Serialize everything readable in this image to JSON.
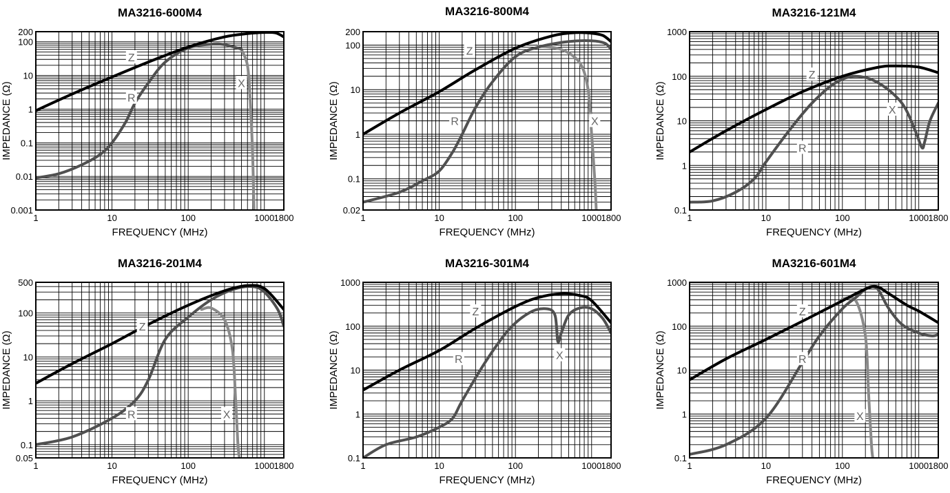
{
  "colors": {
    "Z": "#000000",
    "R": "#505050",
    "X": "#8a8a8a",
    "grid": "#000000"
  },
  "chart_data": [
    {
      "type": "line",
      "title": "MA3216-600M4",
      "xlabel": "FREQUENCY (MHz)",
      "ylabel": "IMPEDANCE (Ω)",
      "xscale": "log",
      "yscale": "log",
      "xlim": [
        1,
        1800
      ],
      "ylim": [
        0.001,
        200
      ],
      "xticks": [
        1,
        10,
        100,
        1000,
        1800
      ],
      "xticklabels": [
        "1",
        "10",
        "100",
        "1000",
        "1800"
      ],
      "yticks": [
        0.001,
        0.01,
        0.1,
        1,
        10,
        100,
        200
      ],
      "yticklabels": [
        "0.001",
        "0.01",
        "0.1",
        "1",
        "10",
        "100",
        "200"
      ],
      "grid": true,
      "series": [
        {
          "name": "Z",
          "x": [
            1,
            3,
            10,
            30,
            100,
            300,
            600,
            1000,
            1400,
            1800
          ],
          "y": [
            0.9,
            2.8,
            9,
            25,
            70,
            140,
            175,
            190,
            185,
            140
          ]
        },
        {
          "name": "R",
          "x": [
            1,
            2,
            4,
            7,
            10,
            15,
            20,
            30,
            50,
            100,
            200,
            300,
            500
          ],
          "y": [
            0.009,
            0.012,
            0.022,
            0.045,
            0.1,
            0.4,
            1.5,
            6,
            25,
            65,
            85,
            82,
            60
          ]
        },
        {
          "name": "X",
          "x": [
            500,
            600,
            650,
            700,
            730
          ],
          "y": [
            60,
            20,
            2,
            0.05,
            0.001
          ]
        }
      ],
      "annotations": [
        {
          "text": "Z",
          "x": 18,
          "y": 35
        },
        {
          "text": "R",
          "x": 18,
          "y": 2.2
        },
        {
          "text": "X",
          "x": 500,
          "y": 6
        }
      ]
    },
    {
      "type": "line",
      "title": "MA3216-800M4",
      "xlabel": "FREQUENCY (MHz)",
      "ylabel": "IMPEDANCE (Ω)",
      "xscale": "log",
      "yscale": "log",
      "xlim": [
        1,
        1800
      ],
      "ylim": [
        0.02,
        200
      ],
      "xticks": [
        1,
        10,
        100,
        1000,
        1800
      ],
      "xticklabels": [
        "1",
        "10",
        "100",
        "1000",
        "1800"
      ],
      "yticks": [
        0.02,
        0.1,
        1,
        10,
        100,
        200
      ],
      "yticklabels": [
        "0.02",
        "0.1",
        "1",
        "10",
        "100",
        "200"
      ],
      "grid": true,
      "series": [
        {
          "name": "Z",
          "x": [
            1,
            3,
            10,
            30,
            100,
            300,
            600,
            1000,
            1400,
            1800
          ],
          "y": [
            1,
            3,
            9,
            28,
            85,
            160,
            190,
            185,
            165,
            120
          ]
        },
        {
          "name": "R",
          "x": [
            1,
            3,
            6,
            10,
            15,
            20,
            30,
            50,
            100,
            200,
            500,
            1000,
            1500,
            1800
          ],
          "y": [
            0.03,
            0.05,
            0.09,
            0.15,
            0.4,
            1,
            4,
            15,
            55,
            90,
            120,
            125,
            110,
            80
          ]
        },
        {
          "name": "X",
          "x": [
            200,
            400,
            700,
            900,
            1000,
            1100,
            1150
          ],
          "y": [
            95,
            80,
            40,
            10,
            1,
            0.1,
            0.02
          ]
        }
      ],
      "annotations": [
        {
          "text": "Z",
          "x": 25,
          "y": 75
        },
        {
          "text": "R",
          "x": 16,
          "y": 2
        },
        {
          "text": "X",
          "x": 1100,
          "y": 2
        }
      ]
    },
    {
      "type": "line",
      "title": "MA3216-121M4",
      "xlabel": "FREQUENCY (MHz)",
      "ylabel": "IMPEDANCE (Ω)",
      "xscale": "log",
      "yscale": "log",
      "xlim": [
        1,
        1800
      ],
      "ylim": [
        0.1,
        1000
      ],
      "xticks": [
        1,
        10,
        100,
        1000,
        1800
      ],
      "xticklabels": [
        "1",
        "10",
        "100",
        "1000",
        "1800"
      ],
      "yticks": [
        0.1,
        1,
        10,
        100,
        1000
      ],
      "yticklabels": [
        "0.1",
        "1",
        "10",
        "100",
        "1000"
      ],
      "grid": true,
      "series": [
        {
          "name": "Z",
          "x": [
            1,
            3,
            10,
            30,
            100,
            300,
            500,
            1000,
            1800
          ],
          "y": [
            2,
            6,
            18,
            45,
            100,
            160,
            170,
            160,
            120
          ]
        },
        {
          "name": "R",
          "x": [
            1,
            2,
            4,
            7,
            10,
            20,
            40,
            80,
            150,
            300,
            600,
            900,
            1100,
            1200,
            1400,
            1800
          ],
          "y": [
            0.15,
            0.16,
            0.25,
            0.5,
            1.2,
            6,
            25,
            70,
            100,
            70,
            25,
            6,
            2.5,
            3.5,
            10,
            25
          ]
        }
      ],
      "annotations": [
        {
          "text": "Z",
          "x": 40,
          "y": 110
        },
        {
          "text": "R",
          "x": 30,
          "y": 2.5
        },
        {
          "text": "X",
          "x": 450,
          "y": 18
        }
      ]
    },
    {
      "type": "line",
      "title": "MA3216-201M4",
      "xlabel": "FREQUENCY (MHz)",
      "ylabel": "IMPEDANCE (Ω)",
      "xscale": "log",
      "yscale": "log",
      "xlim": [
        1,
        1800
      ],
      "ylim": [
        0.05,
        500
      ],
      "xticks": [
        1,
        10,
        100,
        1000,
        1800
      ],
      "xticklabels": [
        "1",
        "10",
        "100",
        "1000",
        "1800"
      ],
      "yticks": [
        0.05,
        0.1,
        1,
        10,
        100,
        500
      ],
      "yticklabels": [
        "0.05",
        "0.1",
        "1",
        "10",
        "100",
        "500"
      ],
      "grid": true,
      "series": [
        {
          "name": "Z",
          "x": [
            1,
            3,
            10,
            30,
            100,
            300,
            600,
            1000,
            1800
          ],
          "y": [
            2.5,
            7,
            20,
            55,
            150,
            320,
            420,
            360,
            120
          ]
        },
        {
          "name": "R",
          "x": [
            1,
            3,
            10,
            20,
            30,
            50,
            100,
            200,
            400,
            700,
            1000,
            1500,
            1800
          ],
          "y": [
            0.1,
            0.15,
            0.4,
            1,
            3,
            25,
            80,
            200,
            350,
            400,
            300,
            120,
            50
          ]
        },
        {
          "name": "X",
          "x": [
            150,
            200,
            300,
            380,
            420,
            450,
            470
          ],
          "y": [
            120,
            130,
            70,
            15,
            1,
            0.1,
            0.05
          ]
        }
      ],
      "annotations": [
        {
          "text": "Z",
          "x": 25,
          "y": 50
        },
        {
          "text": "R",
          "x": 18,
          "y": 0.5
        },
        {
          "text": "X",
          "x": 320,
          "y": 0.5
        }
      ]
    },
    {
      "type": "line",
      "title": "MA3216-301M4",
      "xlabel": "FREQUENCY (MHz)",
      "ylabel": "IMPEDANCE (Ω)",
      "xscale": "log",
      "yscale": "log",
      "xlim": [
        1,
        1800
      ],
      "ylim": [
        0.1,
        1000
      ],
      "xticks": [
        1,
        10,
        100,
        1000,
        1800
      ],
      "xticklabels": [
        "1",
        "10",
        "100",
        "1000",
        "1800"
      ],
      "yticks": [
        0.1,
        1,
        10,
        100,
        1000
      ],
      "yticklabels": [
        "0.1",
        "1",
        "10",
        "100",
        "1000"
      ],
      "grid": true,
      "series": [
        {
          "name": "Z",
          "x": [
            1,
            3,
            10,
            30,
            100,
            200,
            400,
            700,
            1000,
            1800
          ],
          "y": [
            3.5,
            10,
            28,
            90,
            280,
            450,
            550,
            500,
            380,
            120
          ]
        },
        {
          "name": "R",
          "x": [
            1,
            2,
            5,
            10,
            15,
            20,
            40,
            80,
            150,
            250,
            330,
            360,
            400,
            500,
            700,
            1000,
            1400,
            1800
          ],
          "y": [
            0.1,
            0.2,
            0.3,
            0.5,
            0.8,
            2,
            15,
            80,
            200,
            250,
            180,
            45,
            70,
            180,
            260,
            250,
            150,
            70
          ]
        }
      ],
      "annotations": [
        {
          "text": "Z",
          "x": 30,
          "y": 220
        },
        {
          "text": "R",
          "x": 18,
          "y": 18
        },
        {
          "text": "X",
          "x": 380,
          "y": 22
        }
      ]
    },
    {
      "type": "line",
      "title": "MA3216-601M4",
      "xlabel": "FREQUENCY (MHz)",
      "ylabel": "IMPEDANCE (Ω)",
      "xscale": "log",
      "yscale": "log",
      "xlim": [
        1,
        1800
      ],
      "ylim": [
        0.1,
        1000
      ],
      "xticks": [
        1,
        10,
        100,
        1000,
        1800
      ],
      "xticklabels": [
        "1",
        "10",
        "100",
        "1000",
        "1800"
      ],
      "yticks": [
        0.1,
        1,
        10,
        100,
        1000
      ],
      "yticklabels": [
        "0.1",
        "1",
        "10",
        "100",
        "1000"
      ],
      "grid": true,
      "series": [
        {
          "name": "Z",
          "x": [
            1,
            3,
            10,
            30,
            100,
            200,
            280,
            400,
            700,
            1000,
            1800
          ],
          "y": [
            6,
            18,
            50,
            130,
            380,
            700,
            800,
            560,
            300,
            220,
            120
          ]
        },
        {
          "name": "R",
          "x": [
            1,
            3,
            10,
            30,
            50,
            100,
            150,
            200,
            250,
            300,
            400,
            600,
            1000,
            1500,
            1800
          ],
          "y": [
            0.12,
            0.2,
            0.8,
            15,
            60,
            250,
            450,
            700,
            800,
            650,
            260,
            110,
            70,
            60,
            65
          ]
        },
        {
          "name": "X",
          "x": [
            100,
            150,
            200,
            220,
            240,
            250
          ],
          "y": [
            420,
            380,
            60,
            3,
            0.2,
            0.1
          ]
        }
      ],
      "annotations": [
        {
          "text": "Z",
          "x": 30,
          "y": 220
        },
        {
          "text": "R",
          "x": 30,
          "y": 18
        },
        {
          "text": "X",
          "x": 170,
          "y": 0.9
        }
      ]
    }
  ]
}
